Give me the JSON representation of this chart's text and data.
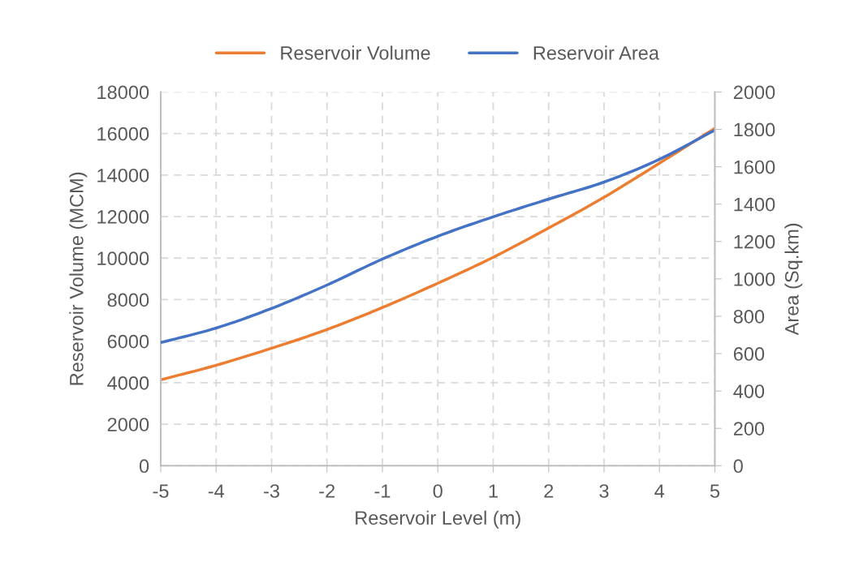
{
  "chart_data": {
    "type": "line",
    "xlabel": "Reservoir Level (m)",
    "ylabel": "Reservoir Volume (MCM)",
    "y2label": "Area (Sq.km)",
    "x": [
      -5,
      -4,
      -3,
      -2,
      -1,
      0,
      1,
      2,
      3,
      4,
      5
    ],
    "series": [
      {
        "name": "Reservoir Volume",
        "color": "#ed7d31",
        "values": [
          4140,
          4840,
          5660,
          6560,
          7620,
          8790,
          10040,
          11450,
          12930,
          14570,
          16250
        ]
      },
      {
        "name": "Reservoir Area",
        "color": "#4472c4",
        "axis": "y2",
        "values": [
          659,
          737,
          842,
          967,
          1106,
          1228,
          1332,
          1427,
          1518,
          1640,
          1796
        ]
      }
    ],
    "xlim": [
      -5,
      5
    ],
    "xticks": [
      -5,
      -4,
      -3,
      -2,
      -1,
      0,
      1,
      2,
      3,
      4,
      5
    ],
    "ylim": [
      0,
      18000
    ],
    "yticks": [
      0,
      2000,
      4000,
      6000,
      8000,
      10000,
      12000,
      14000,
      16000,
      18000
    ],
    "y2lim": [
      0,
      2000
    ],
    "y2ticks": [
      0,
      200,
      400,
      600,
      800,
      1000,
      1200,
      1400,
      1600,
      1800,
      2000
    ],
    "grid": true,
    "legend": "top",
    "line_style": "solid",
    "marker": "none"
  }
}
